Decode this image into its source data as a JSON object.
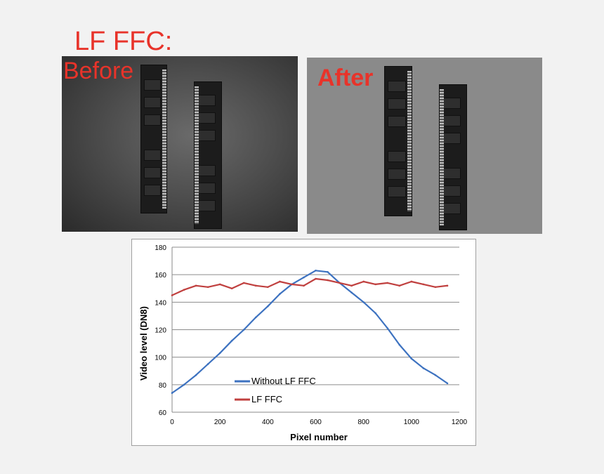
{
  "page": {
    "title": "LF FFC:"
  },
  "photos": {
    "before": {
      "label": "Before"
    },
    "after": {
      "label": "After"
    }
  },
  "colors": {
    "title": "#e8332a",
    "series_without": "#3d72c0",
    "series_lf": "#c0403f"
  },
  "chart_data": {
    "type": "line",
    "xlabel": "Pixel number",
    "ylabel": "Video level (DN8)",
    "xlim": [
      0,
      1200
    ],
    "ylim": [
      60,
      180
    ],
    "xticks": [
      0,
      200,
      400,
      600,
      800,
      1000,
      1200
    ],
    "yticks": [
      60,
      80,
      100,
      120,
      140,
      160,
      180
    ],
    "grid": "horizontal",
    "legend_position": "lower-center",
    "series": [
      {
        "name": "Without LF FFC",
        "color": "#3d72c0",
        "x": [
          0,
          50,
          100,
          150,
          200,
          250,
          300,
          350,
          400,
          450,
          500,
          550,
          600,
          650,
          700,
          750,
          800,
          850,
          900,
          950,
          1000,
          1050,
          1100,
          1150
        ],
        "y": [
          74,
          80,
          87,
          95,
          103,
          112,
          120,
          129,
          137,
          146,
          153,
          158,
          163,
          162,
          154,
          147,
          140,
          132,
          121,
          109,
          99,
          92,
          87,
          81
        ]
      },
      {
        "name": "LF FFC",
        "color": "#c0403f",
        "x": [
          0,
          50,
          100,
          150,
          200,
          250,
          300,
          350,
          400,
          450,
          500,
          550,
          600,
          650,
          700,
          750,
          800,
          850,
          900,
          950,
          1000,
          1050,
          1100,
          1150
        ],
        "y": [
          145,
          149,
          152,
          151,
          153,
          150,
          154,
          152,
          151,
          155,
          153,
          152,
          157,
          156,
          154,
          152,
          155,
          153,
          154,
          152,
          155,
          153,
          151,
          152
        ]
      }
    ]
  }
}
